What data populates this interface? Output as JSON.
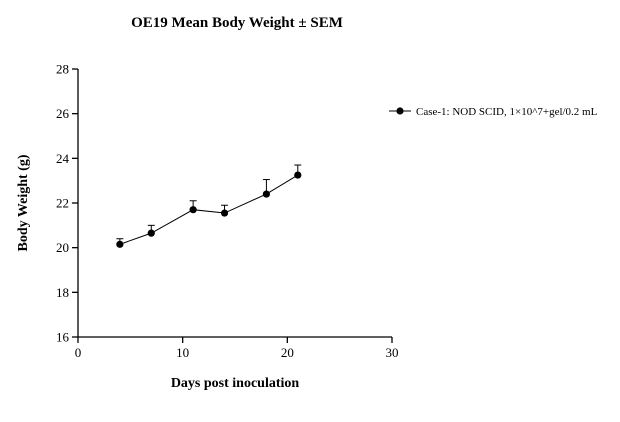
{
  "chart_data": {
    "type": "line",
    "title": "OE19 Mean Body Weight ± SEM",
    "xlabel": "Days post inoculation",
    "ylabel": "Body Weight (g)",
    "xlim": [
      0,
      30
    ],
    "ylim": [
      16,
      28
    ],
    "xticks": [
      0,
      10,
      20,
      30
    ],
    "yticks": [
      16,
      18,
      20,
      22,
      24,
      26,
      28
    ],
    "grid": false,
    "legend_position": "right",
    "series": [
      {
        "name": "Case-1: NOD SCID, 1×10^7+gel/0.2 mL",
        "color": "#000000",
        "marker": "circle",
        "x": [
          4,
          7,
          11,
          14,
          18,
          21
        ],
        "y": [
          20.15,
          20.65,
          21.7,
          21.55,
          22.4,
          23.25
        ],
        "sem": [
          0.25,
          0.35,
          0.4,
          0.35,
          0.65,
          0.45
        ]
      }
    ]
  }
}
